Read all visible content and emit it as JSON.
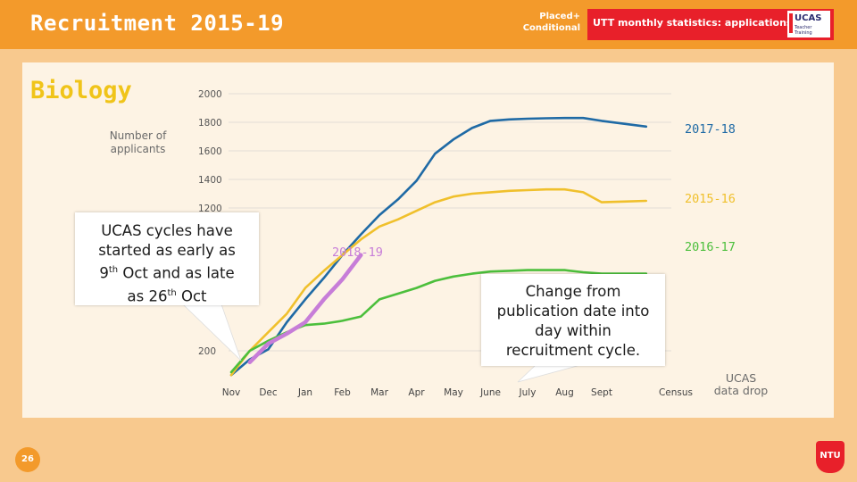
{
  "header": {
    "title": "Recruitment 2015-19",
    "placed_line1": "Placed+",
    "placed_line2": "Conditional",
    "utt_banner": "UTT monthly statistics: applications",
    "logo_text": "UCAS",
    "logo_subtext": "Teacher Training"
  },
  "subject": "Biology",
  "y_axis_label_line1": "Number of",
  "y_axis_label_line2": "applicants",
  "callout": {
    "line1": "UCAS cycles have",
    "line2": "started as early as",
    "line3_pre": "9",
    "line3_sup": "th",
    "line3_post": " Oct and as late",
    "line4_pre": "as 26",
    "line4_sup": "th",
    "line4_post": " Oct"
  },
  "note": [
    "Change from",
    "publication date into",
    "day within",
    "recruitment cycle."
  ],
  "data_drop": [
    "UCAS",
    "data drop"
  ],
  "page_number": "26",
  "footer_logo": "NTU",
  "chart_data": {
    "type": "line",
    "y_ticks": [
      200,
      1200,
      1400,
      1600,
      1800,
      2000
    ],
    "categories": [
      "Nov",
      "Dec",
      "Jan",
      "Feb",
      "Mar",
      "Apr",
      "May",
      "June",
      "July",
      "Aug",
      "Sept",
      "Census"
    ],
    "series": [
      {
        "name": "2017-18",
        "color": "#1f6aa5",
        "x": [
          0,
          0.5,
          1,
          1.5,
          2,
          2.5,
          3,
          3.5,
          4,
          4.5,
          5,
          5.5,
          6,
          6.5,
          7,
          7.5,
          8,
          8.5,
          9,
          9.5,
          10,
          11.2
        ],
        "values": [
          30,
          140,
          210,
          400,
          560,
          710,
          870,
          1015,
          1150,
          1260,
          1390,
          1580,
          1680,
          1760,
          1810,
          1820,
          1825,
          1828,
          1830,
          1830,
          1810,
          1770
        ]
      },
      {
        "name": "2015-16",
        "color": "#f0c02c",
        "x": [
          0,
          0.5,
          1,
          1.5,
          2,
          2.5,
          3,
          3.5,
          4,
          4.5,
          5,
          5.5,
          6,
          6.5,
          7,
          7.5,
          8,
          8.5,
          9,
          9.5,
          10,
          10.6,
          11.2
        ],
        "values": [
          30,
          200,
          330,
          460,
          640,
          760,
          870,
          980,
          1070,
          1120,
          1180,
          1240,
          1280,
          1300,
          1310,
          1320,
          1325,
          1330,
          1330,
          1310,
          1240,
          1245,
          1250
        ]
      },
      {
        "name": "2016-17",
        "color": "#4cbf3c",
        "x": [
          0,
          0.5,
          1,
          1.5,
          2,
          2.5,
          3,
          3.5,
          4,
          4.5,
          5,
          5.5,
          6,
          6.5,
          7,
          7.5,
          8,
          8.5,
          9,
          9.5,
          10,
          11.2
        ],
        "values": [
          50,
          200,
          270,
          330,
          380,
          390,
          410,
          440,
          560,
          600,
          640,
          690,
          720,
          740,
          755,
          760,
          765,
          765,
          765,
          750,
          740,
          740
        ]
      },
      {
        "name": "2018-19",
        "color": "#c77dd8",
        "x": [
          0.5,
          1,
          1.5,
          2,
          2.5,
          3,
          3.5
        ],
        "values": [
          120,
          250,
          320,
          400,
          560,
          700,
          870
        ]
      }
    ]
  }
}
